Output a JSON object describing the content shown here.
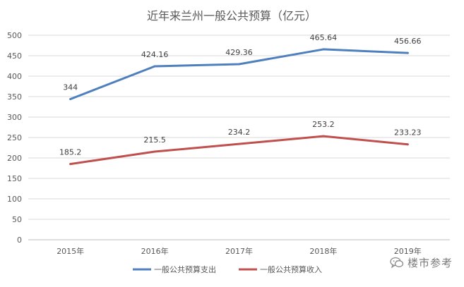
{
  "chart_data": {
    "type": "line",
    "title": "近年来兰州一般公共预算（亿元）",
    "categories": [
      "2015年",
      "2016年",
      "2017年",
      "2018年",
      "2019年"
    ],
    "ylim": [
      0,
      500
    ],
    "yticks": [
      0,
      50,
      100,
      150,
      200,
      250,
      300,
      350,
      400,
      450,
      500
    ],
    "grid": true,
    "legend_position": "bottom",
    "series": [
      {
        "name": "一般公共预算支出",
        "values": [
          344,
          424.16,
          429.36,
          465.64,
          456.66
        ],
        "labels": [
          "344",
          "424.16",
          "429.36",
          "465.64",
          "456.66"
        ],
        "color": "#4f7fbd"
      },
      {
        "name": "一般公共预算收入",
        "values": [
          185.2,
          215.5,
          234.2,
          253.2,
          233.23
        ],
        "labels": [
          "185.2",
          "215.5",
          "234.2",
          "253.2",
          "233.23"
        ],
        "color": "#c0504d"
      }
    ]
  },
  "watermark": {
    "text": "楼市参考",
    "icon": "wechat-icon"
  }
}
